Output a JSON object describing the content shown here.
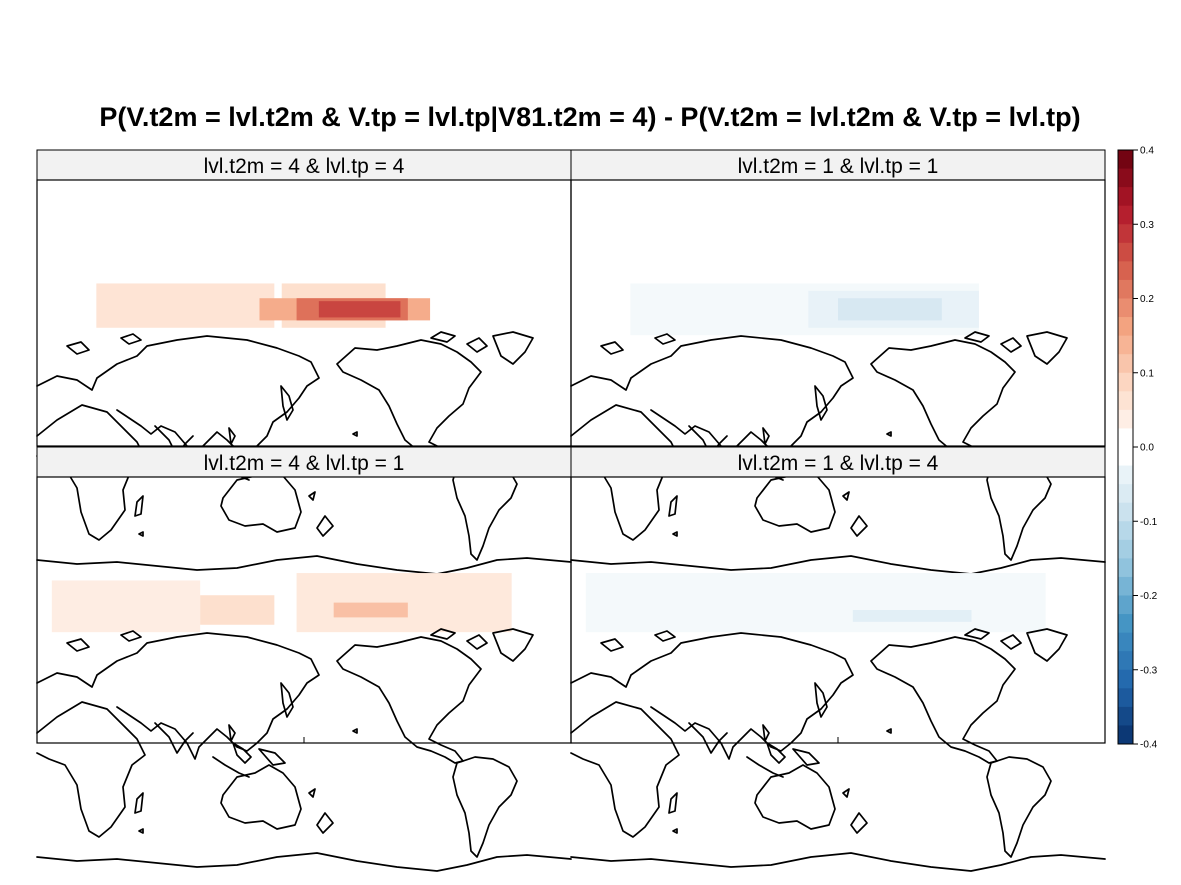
{
  "chart_data": {
    "type": "heatmap",
    "title": "P(V.t2m = lvl.t2m & V.tp = lvl.tp|V81.t2m = 4) - P(V.t2m = lvl.t2m & V.tp = lvl.tp)",
    "xlabel": "",
    "ylabel": "",
    "layout": "2x2 panels",
    "colorbar": {
      "range": [
        -0.4,
        0.4
      ],
      "ticks": [
        "0.4",
        "0.3",
        "0.2",
        "0.1",
        "0.0",
        "-0.1",
        "-0.2",
        "-0.3",
        "-0.4"
      ],
      "palette": "blue-white-red diverging",
      "colors": {
        "neg_end": "#08306b",
        "mid": "#ffffff",
        "pos_end": "#67000d"
      }
    },
    "panels": [
      {
        "strip": "lvl.t2m = 4 & lvl.tp = 4",
        "row": 0,
        "col": 0,
        "cells": [
          {
            "lon": [
              40,
              160
            ],
            "lat": [
              -10,
              20
            ],
            "value": 0.06
          },
          {
            "lon": [
              165,
              235
            ],
            "lat": [
              -10,
              20
            ],
            "value": 0.07
          },
          {
            "lon": [
              150,
              265
            ],
            "lat": [
              -5,
              10
            ],
            "value": 0.15
          },
          {
            "lon": [
              175,
              250
            ],
            "lat": [
              -5,
              10
            ],
            "value": 0.22
          },
          {
            "lon": [
              190,
              245
            ],
            "lat": [
              -3,
              8
            ],
            "value": 0.27
          }
        ]
      },
      {
        "strip": "lvl.t2m = 1 & lvl.tp = 1",
        "row": 0,
        "col": 1,
        "cells": [
          {
            "lon": [
              40,
              275
            ],
            "lat": [
              -15,
              20
            ],
            "value": -0.02
          },
          {
            "lon": [
              160,
              275
            ],
            "lat": [
              -10,
              15
            ],
            "value": -0.04
          },
          {
            "lon": [
              180,
              250
            ],
            "lat": [
              -5,
              10
            ],
            "value": -0.07
          }
        ]
      },
      {
        "strip": "lvl.t2m = 4 & lvl.tp = 1",
        "row": 1,
        "col": 0,
        "cells": [
          {
            "lon": [
              10,
              110
            ],
            "lat": [
              -15,
              20
            ],
            "value": 0.04
          },
          {
            "lon": [
              110,
              160
            ],
            "lat": [
              -10,
              10
            ],
            "value": 0.07
          },
          {
            "lon": [
              175,
              320
            ],
            "lat": [
              -15,
              25
            ],
            "value": 0.05
          },
          {
            "lon": [
              200,
              250
            ],
            "lat": [
              -5,
              5
            ],
            "value": 0.12
          }
        ]
      },
      {
        "strip": "lvl.t2m = 1 & lvl.tp = 4",
        "row": 1,
        "col": 1,
        "cells": [
          {
            "lon": [
              10,
              320
            ],
            "lat": [
              -15,
              25
            ],
            "value": -0.02
          },
          {
            "lon": [
              190,
              270
            ],
            "lat": [
              -8,
              0
            ],
            "value": -0.05
          }
        ]
      }
    ]
  }
}
